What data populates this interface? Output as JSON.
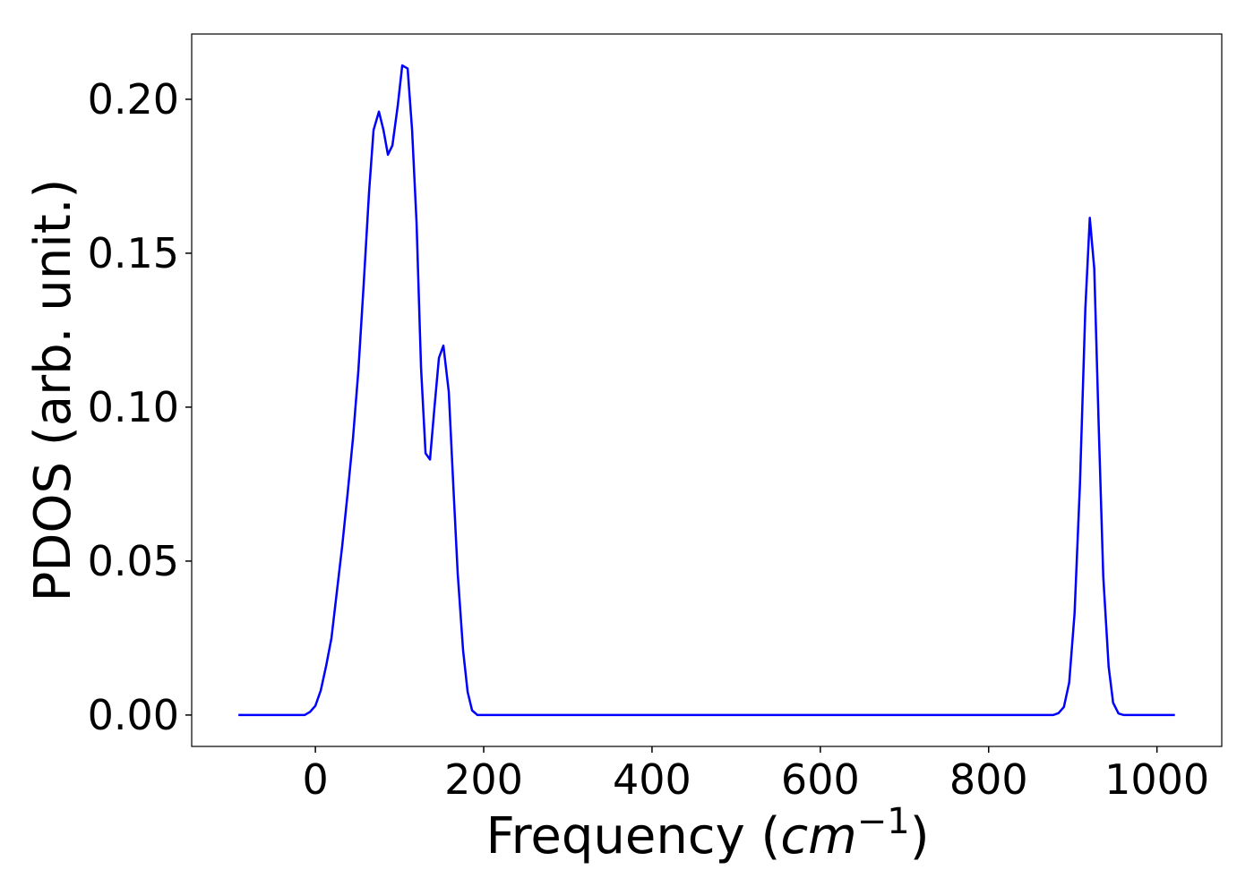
{
  "chart_data": {
    "type": "line",
    "x_label": [
      "Frequency (",
      "cm",
      "−1",
      ")"
    ],
    "y_label": "PDOS (arb. unit.)",
    "x": [
      -91.5,
      -12.8,
      -6.4,
      0,
      6.4,
      12.8,
      19.1,
      25.5,
      31.9,
      38.3,
      44.7,
      51.1,
      57.4,
      63.8,
      69.1,
      75.5,
      80.9,
      86.2,
      91.5,
      97.9,
      103.2,
      109.6,
      114.9,
      120.2,
      125.5,
      130.9,
      136.2,
      141.5,
      146.8,
      152.1,
      158.5,
      163.8,
      169.1,
      175.5,
      180.9,
      186.2,
      192.6,
      876.6,
      883,
      889.4,
      895.7,
      902.1,
      908.5,
      914.9,
      920.2,
      925.5,
      930.9,
      936.2,
      942.6,
      947.9,
      954.3,
      960.6,
      1021.3
    ],
    "series": [
      {
        "color": "#0000ff",
        "values": [
          0,
          0,
          0.001,
          0.003,
          0.008,
          0.016,
          0.025,
          0.04,
          0.055,
          0.072,
          0.09,
          0.112,
          0.14,
          0.17,
          0.19,
          0.196,
          0.19,
          0.182,
          0.185,
          0.198,
          0.211,
          0.21,
          0.19,
          0.16,
          0.113,
          0.085,
          0.083,
          0.1,
          0.116,
          0.12,
          0.105,
          0.075,
          0.046,
          0.021,
          0.0075,
          0.0015,
          0,
          0,
          0.0006,
          0.0026,
          0.0105,
          0.033,
          0.075,
          0.132,
          0.1615,
          0.145,
          0.093,
          0.045,
          0.0157,
          0.004,
          0.0005,
          0,
          0
        ]
      }
    ],
    "xlim": [
      -147,
      1077
    ],
    "ylim": [
      -0.0102,
      0.2212
    ],
    "xticks": [
      0,
      200,
      400,
      600,
      800,
      1000
    ],
    "yticks": [
      {
        "value": 0,
        "label": "0.00"
      },
      {
        "value": 0.05,
        "label": "0.05"
      },
      {
        "value": 0.1,
        "label": "0.10"
      },
      {
        "value": 0.15,
        "label": "0.15"
      },
      {
        "value": 0.2,
        "label": "0.20"
      }
    ],
    "grid": false
  }
}
